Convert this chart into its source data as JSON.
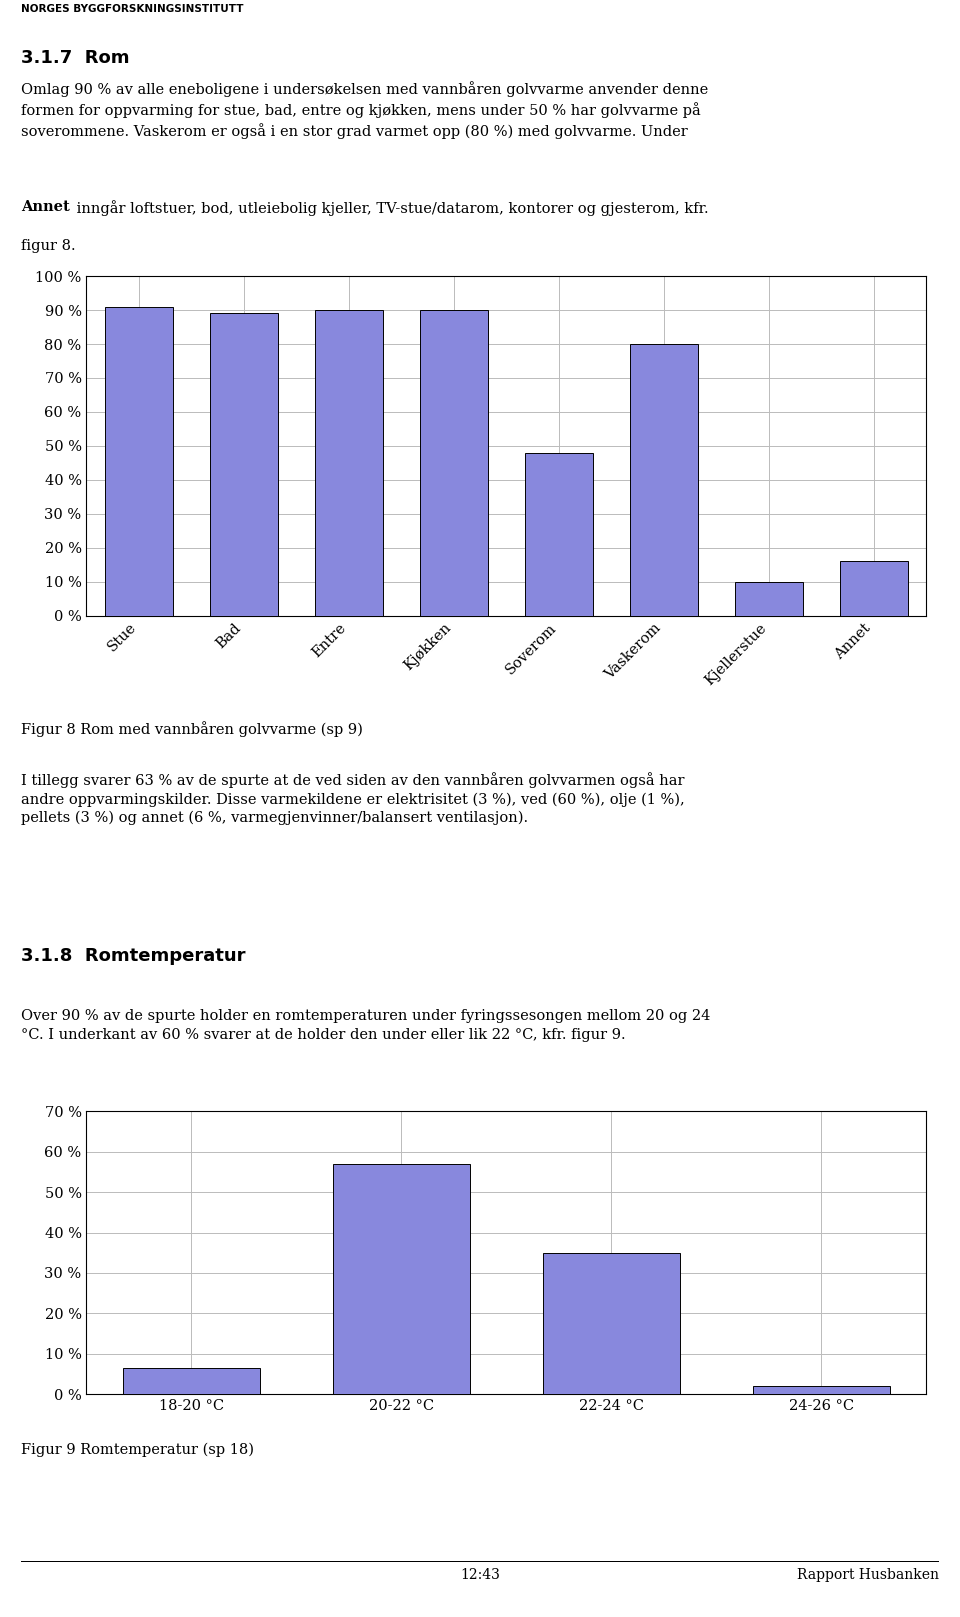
{
  "header_text": "NORGES BYGGFORSKNINGSINSTITUTT",
  "section_title": "3.1.7  Rom",
  "chart1_categories": [
    "Stue",
    "Bad",
    "Entre",
    "Kjøkken",
    "Soverom",
    "Vaskerom",
    "Kjellerstue",
    "Annet"
  ],
  "chart1_values": [
    91,
    89,
    90,
    90,
    48,
    80,
    10,
    16
  ],
  "chart1_ylim": [
    0,
    100
  ],
  "chart1_yticks": [
    0,
    10,
    20,
    30,
    40,
    50,
    60,
    70,
    80,
    90,
    100
  ],
  "chart1_ytick_labels": [
    "0 %",
    "10 %",
    "20 %",
    "30 %",
    "40 %",
    "50 %",
    "60 %",
    "70 %",
    "80 %",
    "90 %",
    "100 %"
  ],
  "chart1_bar_color": "#8888dd",
  "chart1_caption": "Figur 8 Rom med vannbåren golvvarme (sp 9)",
  "section2_title": "3.1.8  Romtemperatur",
  "chart2_categories": [
    "18-20 °C",
    "20-22 °C",
    "22-24 °C",
    "24-26 °C"
  ],
  "chart2_values": [
    6.5,
    57,
    35,
    2
  ],
  "chart2_ylim": [
    0,
    70
  ],
  "chart2_yticks": [
    0,
    10,
    20,
    30,
    40,
    50,
    60,
    70
  ],
  "chart2_ytick_labels": [
    "0 %",
    "10 %",
    "20 %",
    "30 %",
    "40 %",
    "50 %",
    "60 %",
    "70 %"
  ],
  "chart2_bar_color": "#8888dd",
  "chart2_caption": "Figur 9 Romtemperatur (sp 18)",
  "footer_left": "12:43",
  "footer_right": "Rapport Husbanken",
  "bg_color": "#ffffff",
  "bar_edge_color": "#000000",
  "grid_color": "#bbbbbb",
  "text_color": "#000000",
  "body_fontsize": 10.5,
  "tick_fontsize": 10.5,
  "caption_fontsize": 10.5,
  "header_fontsize": 7.5,
  "section_fontsize": 13
}
